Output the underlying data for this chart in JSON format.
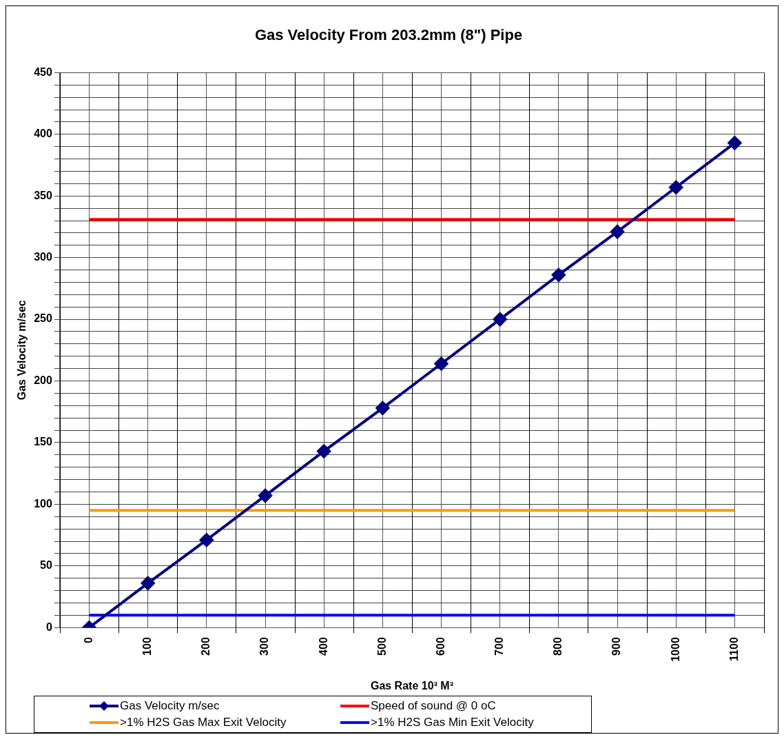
{
  "chart_data": {
    "type": "line",
    "title": "Gas Velocity From 203.2mm (8\") Pipe",
    "xlabel": "Gas Rate 10³ M³",
    "ylabel": "Gas Velocity m/sec",
    "categories": [
      "0",
      "100",
      "200",
      "300",
      "400",
      "500",
      "600",
      "700",
      "800",
      "900",
      "1000",
      "1100"
    ],
    "series": [
      {
        "name": "Gas Velocity m/sec",
        "color": "#000080",
        "marker": "diamond",
        "values": [
          0,
          36,
          71,
          107,
          143,
          178,
          214,
          250,
          286,
          321,
          357,
          393
        ]
      },
      {
        "name": "Speed of sound @ 0 oC",
        "color": "#ff0000",
        "marker": "none",
        "values": [
          331,
          331,
          331,
          331,
          331,
          331,
          331,
          331,
          331,
          331,
          331,
          331
        ]
      },
      {
        "name": ">1% H2S Gas Max Exit Velocity",
        "color": "#ff9900",
        "marker": "none",
        "values": [
          95,
          95,
          95,
          95,
          95,
          95,
          95,
          95,
          95,
          95,
          95,
          95
        ]
      },
      {
        "name": ">1% H2S Gas Min Exit Velocity",
        "color": "#0000ff",
        "marker": "none",
        "values": [
          10,
          10,
          10,
          10,
          10,
          10,
          10,
          10,
          10,
          10,
          10,
          10
        ]
      }
    ],
    "ylim": [
      0,
      450
    ],
    "yticks": [
      0,
      {
        "value": 10,
        "label": null
      },
      {
        "value": 20,
        "label": null
      },
      {
        "value": 30,
        "label": null
      },
      {
        "value": 40,
        "label": null
      },
      50,
      {
        "value": 60,
        "label": null
      },
      {
        "value": 70,
        "label": null
      },
      {
        "value": 80,
        "label": null
      },
      {
        "value": 90,
        "label": null
      },
      100,
      {
        "value": 110,
        "label": null
      },
      {
        "value": 120,
        "label": null
      },
      {
        "value": 130,
        "label": null
      },
      {
        "value": 140,
        "label": null
      },
      150,
      {
        "value": 160,
        "label": null
      },
      {
        "value": 170,
        "label": null
      },
      {
        "value": 180,
        "label": null
      },
      {
        "value": 190,
        "label": null
      },
      200,
      {
        "value": 210,
        "label": null
      },
      {
        "value": 220,
        "label": null
      },
      {
        "value": 230,
        "label": null
      },
      {
        "value": 240,
        "label": null
      },
      250,
      {
        "value": 260,
        "label": null
      },
      {
        "value": 270,
        "label": null
      },
      {
        "value": 280,
        "label": null
      },
      {
        "value": 290,
        "label": null
      },
      300,
      {
        "value": 310,
        "label": null
      },
      {
        "value": 320,
        "label": null
      },
      {
        "value": 330,
        "label": null
      },
      {
        "value": 340,
        "label": null
      },
      350,
      {
        "value": 360,
        "label": null
      },
      {
        "value": 370,
        "label": null
      },
      {
        "value": 380,
        "label": null
      },
      {
        "value": 390,
        "label": null
      },
      400,
      {
        "value": 410,
        "label": null
      },
      {
        "value": 420,
        "label": null
      },
      {
        "value": 430,
        "label": null
      },
      {
        "value": 440,
        "label": null
      },
      450
    ],
    "grid": true,
    "legend": "bottom",
    "line_style": "solid"
  }
}
